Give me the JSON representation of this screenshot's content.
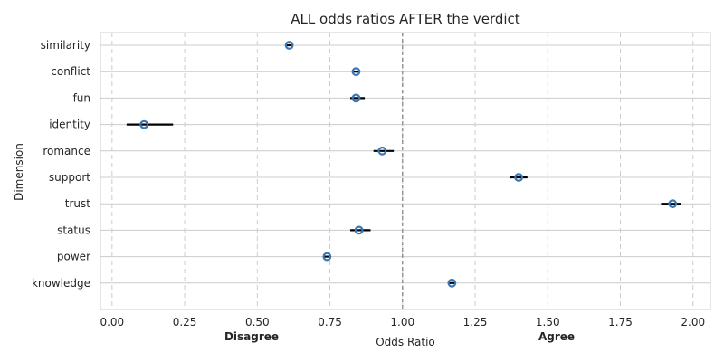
{
  "chart_data": {
    "type": "scatter",
    "title": "ALL odds ratios AFTER the verdict",
    "xlabel": "Odds Ratio",
    "ylabel": "Dimension",
    "xlim": [
      -0.04,
      2.06
    ],
    "xticks": [
      "0.00",
      "0.25",
      "0.50",
      "0.75",
      "1.00",
      "1.25",
      "1.50",
      "1.75",
      "2.00"
    ],
    "reference_line": 1.0,
    "left_annotation": "Disagree",
    "right_annotation": "Agree",
    "grid": true,
    "categories": [
      "similarity",
      "conflict",
      "fun",
      "identity",
      "romance",
      "support",
      "trust",
      "status",
      "power",
      "knowledge"
    ],
    "points": [
      {
        "label": "similarity",
        "value": 0.61,
        "ci": [
          0.6,
          0.62
        ]
      },
      {
        "label": "conflict",
        "value": 0.84,
        "ci": [
          0.83,
          0.85
        ]
      },
      {
        "label": "fun",
        "value": 0.84,
        "ci": [
          0.82,
          0.87
        ]
      },
      {
        "label": "identity",
        "value": 0.11,
        "ci": [
          0.05,
          0.21
        ]
      },
      {
        "label": "romance",
        "value": 0.93,
        "ci": [
          0.9,
          0.97
        ]
      },
      {
        "label": "support",
        "value": 1.4,
        "ci": [
          1.37,
          1.43
        ]
      },
      {
        "label": "trust",
        "value": 1.93,
        "ci": [
          1.89,
          1.96
        ]
      },
      {
        "label": "status",
        "value": 0.85,
        "ci": [
          0.82,
          0.89
        ]
      },
      {
        "label": "power",
        "value": 0.74,
        "ci": [
          0.73,
          0.75
        ]
      },
      {
        "label": "knowledge",
        "value": 1.17,
        "ci": [
          1.16,
          1.18
        ]
      }
    ],
    "colors": {
      "marker": "#3a78b5",
      "errorbar": "#000000",
      "refline": "#808080",
      "grid": "#cccccc"
    }
  }
}
